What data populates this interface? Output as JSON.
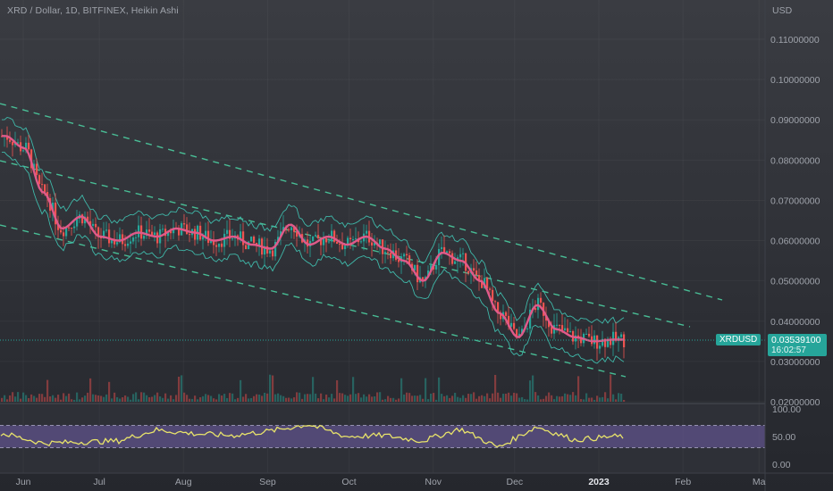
{
  "header": {
    "symbol_title": "XRD / Dollar, 1D, BITFINEX, Heikin Ashi",
    "currency": "USD"
  },
  "price_scale": {
    "labels": [
      "0.11000000",
      "0.10000000",
      "0.09000000",
      "0.08000000",
      "0.07000000",
      "0.06000000",
      "0.05000000",
      "0.04000000",
      "0.03000000",
      "0.02000000"
    ]
  },
  "last_price": {
    "symbol": "XRDUSD",
    "value": "0.03539100",
    "countdown": "16:02:57"
  },
  "oscillator": {
    "labels": [
      "100.00",
      "50.00",
      "0.00"
    ],
    "band_upper": 70,
    "band_lower": 30
  },
  "time_axis": {
    "labels": [
      "Jun",
      "Jul",
      "Aug",
      "Sep",
      "Oct",
      "Nov",
      "Dec",
      "2023",
      "Feb",
      "Ma"
    ]
  },
  "colors": {
    "background": "#2a2c33",
    "up": "#26a69a",
    "down": "#ef5350",
    "moving_average": "#e05a8a",
    "bollinger": "#3fb8a9",
    "channel": "#4dd6a6",
    "oscillator_line": "#e8e36a",
    "oscillator_band": "#6b5a9e"
  },
  "chart_data": {
    "type": "line",
    "chart_style": "Heikin Ashi candlesticks",
    "price_axis": {
      "range": [
        0.02,
        0.115
      ]
    },
    "approx_close_series": {
      "x": [
        "2022-05-27",
        "2022-06-03",
        "2022-06-10",
        "2022-06-17",
        "2022-06-24",
        "2022-07-01",
        "2022-07-08",
        "2022-07-15",
        "2022-07-22",
        "2022-07-29",
        "2022-08-05",
        "2022-08-12",
        "2022-08-19",
        "2022-08-26",
        "2022-09-02",
        "2022-09-09",
        "2022-09-16",
        "2022-09-23",
        "2022-09-30",
        "2022-10-07",
        "2022-10-14",
        "2022-10-21",
        "2022-10-28",
        "2022-11-04",
        "2022-11-11",
        "2022-11-18",
        "2022-11-25",
        "2022-12-02",
        "2022-12-09",
        "2022-12-16",
        "2022-12-23",
        "2022-12-30",
        "2023-01-06"
      ],
      "y": [
        0.086,
        0.083,
        0.072,
        0.063,
        0.066,
        0.061,
        0.06,
        0.062,
        0.061,
        0.063,
        0.062,
        0.06,
        0.061,
        0.059,
        0.058,
        0.064,
        0.059,
        0.061,
        0.059,
        0.061,
        0.058,
        0.055,
        0.05,
        0.057,
        0.055,
        0.05,
        0.042,
        0.036,
        0.044,
        0.038,
        0.036,
        0.035,
        0.0354
      ]
    },
    "oscillator_series": {
      "y_range": [
        0,
        100
      ],
      "x": [
        "2022-05-27",
        "2022-06-10",
        "2022-06-24",
        "2022-07-08",
        "2022-07-22",
        "2022-08-05",
        "2022-08-19",
        "2022-09-02",
        "2022-09-16",
        "2022-09-30",
        "2022-10-14",
        "2022-10-28",
        "2022-11-11",
        "2022-11-25",
        "2022-12-09",
        "2022-12-23",
        "2023-01-06"
      ],
      "y": [
        55,
        38,
        40,
        42,
        62,
        55,
        52,
        60,
        72,
        50,
        52,
        42,
        64,
        30,
        68,
        44,
        50
      ]
    }
  }
}
